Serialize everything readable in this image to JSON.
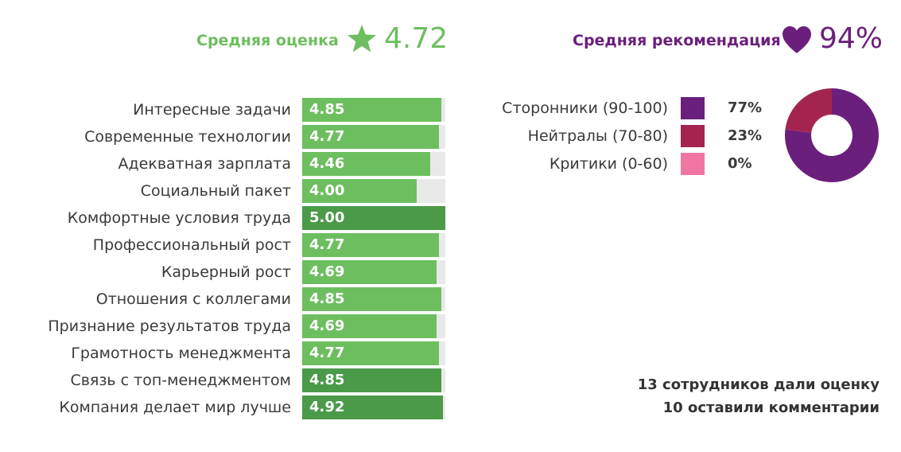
{
  "colors": {
    "green": "#6dbe5f",
    "green_dark": "#4a9a48",
    "track": "#e9e9e9",
    "purple": "#6b1f7c",
    "crimson": "#a3254f",
    "pink": "#f076a2"
  },
  "header": {
    "avg_title": "Средняя оценка",
    "avg_icon": "star-icon",
    "avg_value": "4.72",
    "rec_title": "Средняя рекомендация",
    "rec_icon": "heart-icon",
    "rec_value": "94%"
  },
  "chart_data": [
    {
      "type": "bar",
      "orientation": "horizontal",
      "categories": [
        "Интересные задачи",
        "Современные технологии",
        "Адекватная зарплата",
        "Социальный пакет",
        "Комфортные условия труда",
        "Профессиональный рост",
        "Карьерный рост",
        "Отношения с коллегами",
        "Признание результатов труда",
        "Грамотность менеджмента",
        "Связь с топ-менеджментом",
        "Компания делает мир лучше"
      ],
      "values": [
        4.85,
        4.77,
        4.46,
        4.0,
        5.0,
        4.77,
        4.69,
        4.85,
        4.69,
        4.77,
        4.85,
        4.92
      ],
      "value_labels": [
        "4.85",
        "4.77",
        "4.46",
        "4.00",
        "5.00",
        "4.77",
        "4.69",
        "4.85",
        "4.69",
        "4.77",
        "4.85",
        "4.92"
      ],
      "highlighted": [
        false,
        false,
        false,
        false,
        true,
        false,
        false,
        false,
        false,
        false,
        true,
        true
      ],
      "xlim": [
        0,
        5
      ],
      "title": "",
      "xlabel": "",
      "ylabel": ""
    },
    {
      "type": "pie",
      "variant": "donut",
      "categories": [
        "Сторонники (90-100)",
        "Нейтралы (70-80)",
        "Критики (0-60)"
      ],
      "values": [
        77,
        23,
        0
      ],
      "value_labels": [
        "77%",
        "23%",
        "0%"
      ],
      "colors": [
        "#6b1f7c",
        "#a3254f",
        "#f076a2"
      ],
      "legend": "left",
      "title": ""
    }
  ],
  "footer": {
    "line1": "13 сотрудников дали оценку",
    "line2": "10 оставили комментарии"
  }
}
